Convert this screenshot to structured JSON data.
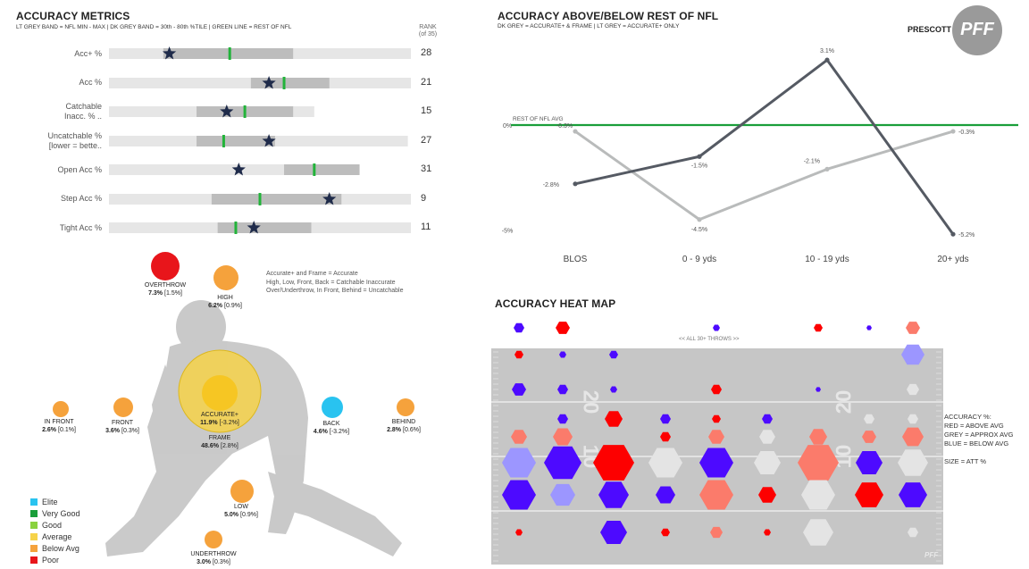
{
  "metrics": {
    "title": "ACCURACY METRICS",
    "subtitle": "LT GREY BAND = NFL MIN - MAX | DK GREY BAND = 30th - 80th %TILE | GREEN LINE = REST OF NFL",
    "rank_header": [
      "RANK",
      "(of 35)"
    ],
    "rows": [
      {
        "label": [
          "Acc+ %"
        ],
        "min": 0.0,
        "max": 1.0,
        "p30": 0.18,
        "p80": 0.61,
        "avg": 0.4,
        "player": 0.2,
        "rank": "28"
      },
      {
        "label": [
          "Acc %"
        ],
        "min": 0.0,
        "max": 1.0,
        "p30": 0.47,
        "p80": 0.73,
        "avg": 0.58,
        "player": 0.53,
        "rank": "21"
      },
      {
        "label": [
          "Catchable",
          "Inacc. % .."
        ],
        "min": 0.0,
        "max": 0.68,
        "p30": 0.29,
        "p80": 0.61,
        "avg": 0.45,
        "player": 0.39,
        "rank": "15"
      },
      {
        "label": [
          "Uncatchable %",
          "[lower = bette.."
        ],
        "min": 0.0,
        "max": 0.99,
        "p30": 0.29,
        "p80": 0.55,
        "avg": 0.38,
        "player": 0.53,
        "rank": "27"
      },
      {
        "label": [
          "Open Acc %"
        ],
        "min": 0.0,
        "max": 0.83,
        "p30": 0.58,
        "p80": 0.83,
        "avg": 0.68,
        "player": 0.43,
        "rank": "31"
      },
      {
        "label": [
          "Step Acc %"
        ],
        "min": 0.0,
        "max": 1.0,
        "p30": 0.34,
        "p80": 0.77,
        "avg": 0.5,
        "player": 0.73,
        "rank": "9"
      },
      {
        "label": [
          "Tight Acc %"
        ],
        "min": 0.0,
        "max": 1.0,
        "p30": 0.36,
        "p80": 0.67,
        "avg": 0.42,
        "player": 0.48,
        "rank": "11"
      }
    ]
  },
  "zones": {
    "notes": [
      "Accurate+ and Frame = Accurate",
      "High, Low, Front, Back = Catchable Inaccurate",
      "Over/Underthrow, In Front, Behind = Uncatchable"
    ],
    "items": [
      {
        "name": "OVERTHROW",
        "pct": "7.3%",
        "diff": "[1.5%]",
        "color": "#e8151b",
        "r": 16
      },
      {
        "name": "HIGH",
        "pct": "6.2%",
        "diff": "[0.9%]",
        "color": "#f5a23c",
        "r": 14
      },
      {
        "name": "IN FRONT",
        "pct": "2.6%",
        "diff": "[0.1%]",
        "color": "#f5a23c",
        "r": 9
      },
      {
        "name": "FRONT",
        "pct": "3.6%",
        "diff": "[0.3%]",
        "color": "#f5a23c",
        "r": 11
      },
      {
        "name": "ACCURATE+",
        "pct": "11.9%",
        "diff": "[-3.2%]",
        "color": "#f6c623",
        "r": 20
      },
      {
        "name": "FRAME",
        "pct": "48.6%",
        "diff": "[2.8%]",
        "color": "#f6d34a",
        "r": 46
      },
      {
        "name": "BACK",
        "pct": "4.6%",
        "diff": "[-3.2%]",
        "color": "#29c3f0",
        "r": 12
      },
      {
        "name": "BEHIND",
        "pct": "2.8%",
        "diff": "[0.6%]",
        "color": "#f5a23c",
        "r": 10
      },
      {
        "name": "LOW",
        "pct": "5.0%",
        "diff": "[0.9%]",
        "color": "#f5a23c",
        "r": 13
      },
      {
        "name": "UNDERTHROW",
        "pct": "3.0%",
        "diff": "[0.3%]",
        "color": "#f5a23c",
        "r": 10
      }
    ]
  },
  "grade_legend": [
    {
      "label": "Elite",
      "color": "#29c3f0"
    },
    {
      "label": "Very Good",
      "color": "#1a9e3a"
    },
    {
      "label": "Good",
      "color": "#8ad23f"
    },
    {
      "label": "Average",
      "color": "#f6d34a"
    },
    {
      "label": "Below Avg",
      "color": "#f5a23c"
    },
    {
      "label": "Poor",
      "color": "#e8151b"
    }
  ],
  "chart_data": [
    {
      "type": "line",
      "title": "ACCURACY ABOVE/BELOW REST OF NFL",
      "subtitle": "DK GREY = ACCURATE+ & FRAME | LT GREY = ACCURATE+ ONLY",
      "player": "PRESCOTT",
      "brand": "PFF",
      "categories": [
        "BLOS",
        "0 - 9 yds",
        "10 - 19 yds",
        "20+ yds"
      ],
      "series": [
        {
          "values": [
            -2.8,
            -1.5,
            3.1,
            -5.2
          ],
          "labels": [
            "-2.8%",
            "-1.5%",
            "3.1%",
            "-5.2%"
          ],
          "color": "#555a63"
        },
        {
          "values": [
            -0.3,
            -4.5,
            -2.1,
            -0.3
          ],
          "labels": [
            "-0.3%",
            "-4.5%",
            "-2.1%",
            "-0.3%"
          ],
          "color": "#b9bbbb"
        }
      ],
      "reference_line": {
        "value": 0,
        "label": "REST OF NFL AVG",
        "color": "#1a9e3a"
      },
      "yticks": [
        {
          "v": 0,
          "label": "0%"
        },
        {
          "v": -5,
          "label": "-5%"
        }
      ],
      "ylim": [
        -6,
        4
      ]
    },
    {
      "type": "heatmap",
      "title": "ACCURACY HEAT MAP",
      "top_label": "<< ALL 30+ THROWS >>",
      "key": [
        "ACCURACY %:",
        "RED = ABOVE AVG",
        "GREY = APPROX AVG",
        "BLUE = BELOW AVG",
        "",
        "SIZE = ATT %"
      ],
      "yard_numbers": [
        "20",
        "10"
      ],
      "colors": {
        "above": "#fd0000",
        "above_lt": "#fb7b6b",
        "avg": "#e4e4e4",
        "below": "#4d0aff",
        "below_lt": "#9c96ff"
      },
      "columns": 9,
      "rows": 8,
      "cells": [
        [
          0,
          0,
          "below",
          6
        ],
        [
          1,
          0,
          "above",
          8
        ],
        [
          4,
          0,
          "below",
          4
        ],
        [
          6,
          0,
          "above",
          5
        ],
        [
          7,
          0,
          "below",
          3
        ],
        [
          8,
          0,
          "above_lt",
          8
        ],
        [
          0,
          1,
          "above",
          5
        ],
        [
          1,
          1,
          "below",
          4
        ],
        [
          2,
          1,
          "below",
          5
        ],
        [
          8,
          1,
          "below_lt",
          13
        ],
        [
          0,
          2,
          "below",
          8
        ],
        [
          1,
          2,
          "below",
          6
        ],
        [
          2,
          2,
          "below",
          4
        ],
        [
          4,
          2,
          "above",
          6
        ],
        [
          6,
          2,
          "below",
          3
        ],
        [
          8,
          2,
          "avg",
          7
        ],
        [
          1,
          3,
          "below",
          6
        ],
        [
          2,
          3,
          "above",
          10
        ],
        [
          3,
          3,
          "below",
          6
        ],
        [
          4,
          3,
          "above",
          5
        ],
        [
          5,
          3,
          "below",
          6
        ],
        [
          7,
          3,
          "avg",
          6
        ],
        [
          8,
          3,
          "avg",
          6
        ],
        [
          0,
          4,
          "above_lt",
          9
        ],
        [
          1,
          4,
          "above_lt",
          11
        ],
        [
          3,
          4,
          "above",
          6
        ],
        [
          4,
          4,
          "above_lt",
          9
        ],
        [
          5,
          4,
          "avg",
          9
        ],
        [
          6,
          4,
          "above_lt",
          10
        ],
        [
          7,
          4,
          "above_lt",
          8
        ],
        [
          8,
          4,
          "above_lt",
          12
        ],
        [
          0,
          5,
          "below_lt",
          19
        ],
        [
          1,
          5,
          "below",
          21
        ],
        [
          2,
          5,
          "above",
          23
        ],
        [
          3,
          5,
          "avg",
          19
        ],
        [
          4,
          5,
          "below",
          19
        ],
        [
          5,
          5,
          "avg",
          15
        ],
        [
          6,
          5,
          "above_lt",
          23
        ],
        [
          7,
          5,
          "below",
          15
        ],
        [
          8,
          5,
          "avg",
          17
        ],
        [
          0,
          6,
          "below",
          19
        ],
        [
          1,
          6,
          "below_lt",
          14
        ],
        [
          2,
          6,
          "below",
          17
        ],
        [
          3,
          6,
          "below",
          11
        ],
        [
          4,
          6,
          "above_lt",
          19
        ],
        [
          5,
          6,
          "above",
          10
        ],
        [
          6,
          6,
          "avg",
          19
        ],
        [
          7,
          6,
          "above",
          16
        ],
        [
          8,
          6,
          "below",
          16
        ],
        [
          0,
          7,
          "above",
          4
        ],
        [
          2,
          7,
          "below",
          15
        ],
        [
          3,
          7,
          "above",
          5
        ],
        [
          4,
          7,
          "above_lt",
          7
        ],
        [
          5,
          7,
          "above",
          4
        ],
        [
          6,
          7,
          "avg",
          17
        ],
        [
          8,
          7,
          "avg",
          6
        ]
      ]
    }
  ]
}
